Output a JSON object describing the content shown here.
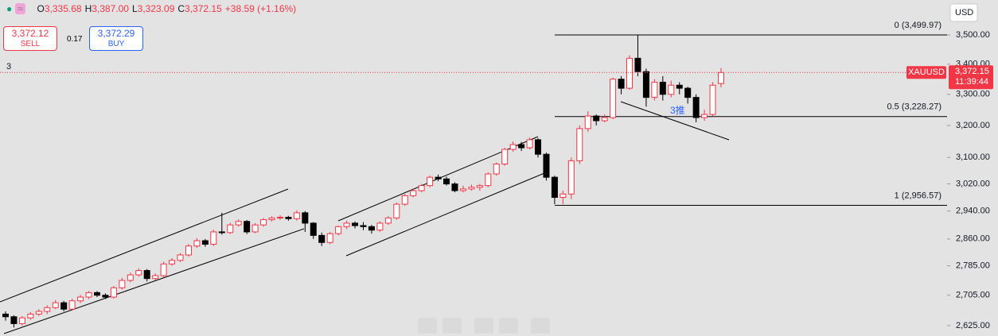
{
  "header": {
    "o": "O",
    "open": "3,335.68",
    "h": "H",
    "high": "3,387.00",
    "l": "L",
    "low": "3,323.09",
    "c": "C",
    "close": "3,372.15",
    "change": "+38.59 (+1.16%)"
  },
  "trade": {
    "sell_price": "3,372.12",
    "sell": "SELL",
    "spread": "0.17",
    "buy_price": "3,372.29",
    "buy": "BUY"
  },
  "indicator_count": "3",
  "currency": "USD",
  "chart_data": {
    "type": "candlestick",
    "symbol": "XAUUSD",
    "countdown": "11:39:44",
    "log": true,
    "up_color": "#f23645",
    "down_color": "#000000",
    "ylim": [
      2598,
      3623
    ],
    "yticks": [
      {
        "value": 3500,
        "label": "3,500.00"
      },
      {
        "value": 3400,
        "label": "3,400.00"
      },
      {
        "value": 3300,
        "label": "3,300.00"
      },
      {
        "value": 3200,
        "label": "3,200.00"
      },
      {
        "value": 3100,
        "label": "3,100.00"
      },
      {
        "value": 3020,
        "label": "3,020.00"
      },
      {
        "value": 2940,
        "label": "2,940.00"
      },
      {
        "value": 2860,
        "label": "2,860.00"
      },
      {
        "value": 2785,
        "label": "2,785.00"
      },
      {
        "value": 2705,
        "label": "2,705.00"
      },
      {
        "value": 2625,
        "label": "2,625.00"
      }
    ],
    "last_price": 3372.15,
    "last_price_label": "3,372.15",
    "fib": [
      {
        "price": 3499.97,
        "label": "0 (3,499.97)"
      },
      {
        "price": 3228.27,
        "label": "0.5 (3,228.27)"
      },
      {
        "price": 2956.57,
        "label": "1 (2,956.57)"
      }
    ],
    "annotation": "3推",
    "candles": [
      [
        2655,
        2662,
        2638,
        2648
      ],
      [
        2648,
        2652,
        2620,
        2630
      ],
      [
        2630,
        2650,
        2625,
        2645
      ],
      [
        2645,
        2660,
        2640,
        2655
      ],
      [
        2655,
        2668,
        2650,
        2662
      ],
      [
        2662,
        2678,
        2655,
        2672
      ],
      [
        2672,
        2692,
        2668,
        2685
      ],
      [
        2685,
        2690,
        2662,
        2668
      ],
      [
        2668,
        2696,
        2664,
        2690
      ],
      [
        2690,
        2706,
        2684,
        2700
      ],
      [
        2700,
        2716,
        2695,
        2712
      ],
      [
        2712,
        2716,
        2700,
        2705
      ],
      [
        2705,
        2710,
        2695,
        2700
      ],
      [
        2700,
        2730,
        2696,
        2725
      ],
      [
        2725,
        2752,
        2720,
        2745
      ],
      [
        2745,
        2766,
        2740,
        2760
      ],
      [
        2760,
        2778,
        2755,
        2772
      ],
      [
        2772,
        2776,
        2742,
        2750
      ],
      [
        2750,
        2764,
        2745,
        2758
      ],
      [
        2758,
        2796,
        2754,
        2790
      ],
      [
        2790,
        2806,
        2785,
        2800
      ],
      [
        2800,
        2820,
        2795,
        2815
      ],
      [
        2815,
        2846,
        2810,
        2840
      ],
      [
        2840,
        2862,
        2835,
        2855
      ],
      [
        2855,
        2860,
        2838,
        2845
      ],
      [
        2845,
        2886,
        2840,
        2880
      ],
      [
        2880,
        2935,
        2872,
        2878
      ],
      [
        2878,
        2906,
        2874,
        2900
      ],
      [
        2900,
        2916,
        2895,
        2910
      ],
      [
        2910,
        2914,
        2874,
        2880
      ],
      [
        2880,
        2905,
        2876,
        2900
      ],
      [
        2900,
        2920,
        2895,
        2915
      ],
      [
        2915,
        2925,
        2910,
        2920
      ],
      [
        2920,
        2928,
        2914,
        2922
      ],
      [
        2922,
        2926,
        2912,
        2918
      ],
      [
        2918,
        2942,
        2912,
        2935
      ],
      [
        2935,
        2940,
        2880,
        2905
      ],
      [
        2905,
        2908,
        2860,
        2870
      ],
      [
        2870,
        2878,
        2840,
        2850
      ],
      [
        2850,
        2880,
        2845,
        2875
      ],
      [
        2875,
        2898,
        2870,
        2895
      ],
      [
        2895,
        2912,
        2888,
        2905
      ],
      [
        2905,
        2910,
        2890,
        2898
      ],
      [
        2898,
        2908,
        2885,
        2895
      ],
      [
        2895,
        2900,
        2875,
        2885
      ],
      [
        2885,
        2910,
        2880,
        2905
      ],
      [
        2905,
        2925,
        2900,
        2920
      ],
      [
        2920,
        2965,
        2915,
        2960
      ],
      [
        2960,
        2990,
        2955,
        2985
      ],
      [
        2985,
        3005,
        2980,
        3000
      ],
      [
        3000,
        3020,
        2995,
        3015
      ],
      [
        3015,
        3045,
        3010,
        3040
      ],
      [
        3040,
        3048,
        3028,
        3035
      ],
      [
        3035,
        3042,
        3015,
        3020
      ],
      [
        3020,
        3025,
        2995,
        3000
      ],
      [
        3000,
        3015,
        2995,
        3005
      ],
      [
        3005,
        3018,
        3000,
        3010
      ],
      [
        3010,
        3020,
        3000,
        3015
      ],
      [
        3015,
        3055,
        3010,
        3050
      ],
      [
        3050,
        3085,
        3045,
        3080
      ],
      [
        3080,
        3130,
        3075,
        3125
      ],
      [
        3125,
        3150,
        3118,
        3140
      ],
      [
        3140,
        3148,
        3120,
        3130
      ],
      [
        3130,
        3162,
        3125,
        3155
      ],
      [
        3155,
        3160,
        3100,
        3110
      ],
      [
        3110,
        3115,
        3030,
        3040
      ],
      [
        3040,
        3045,
        2960,
        2980
      ],
      [
        2980,
        3000,
        2960,
        2990
      ],
      [
        2990,
        3100,
        2975,
        3090
      ],
      [
        3090,
        3200,
        3080,
        3190
      ],
      [
        3190,
        3245,
        3180,
        3230
      ],
      [
        3230,
        3235,
        3200,
        3215
      ],
      [
        3215,
        3235,
        3210,
        3225
      ],
      [
        3225,
        3355,
        3220,
        3350
      ],
      [
        3350,
        3360,
        3300,
        3320
      ],
      [
        3320,
        3430,
        3315,
        3420
      ],
      [
        3420,
        3500,
        3360,
        3375
      ],
      [
        3375,
        3385,
        3260,
        3290
      ],
      [
        3290,
        3350,
        3280,
        3340
      ],
      [
        3340,
        3360,
        3280,
        3300
      ],
      [
        3300,
        3345,
        3290,
        3330
      ],
      [
        3330,
        3340,
        3300,
        3320
      ],
      [
        3320,
        3325,
        3270,
        3290
      ],
      [
        3290,
        3300,
        3210,
        3225
      ],
      [
        3225,
        3250,
        3215,
        3235
      ],
      [
        3235,
        3340,
        3230,
        3330
      ],
      [
        3335.68,
        3387,
        3323.09,
        3372.15
      ]
    ]
  }
}
